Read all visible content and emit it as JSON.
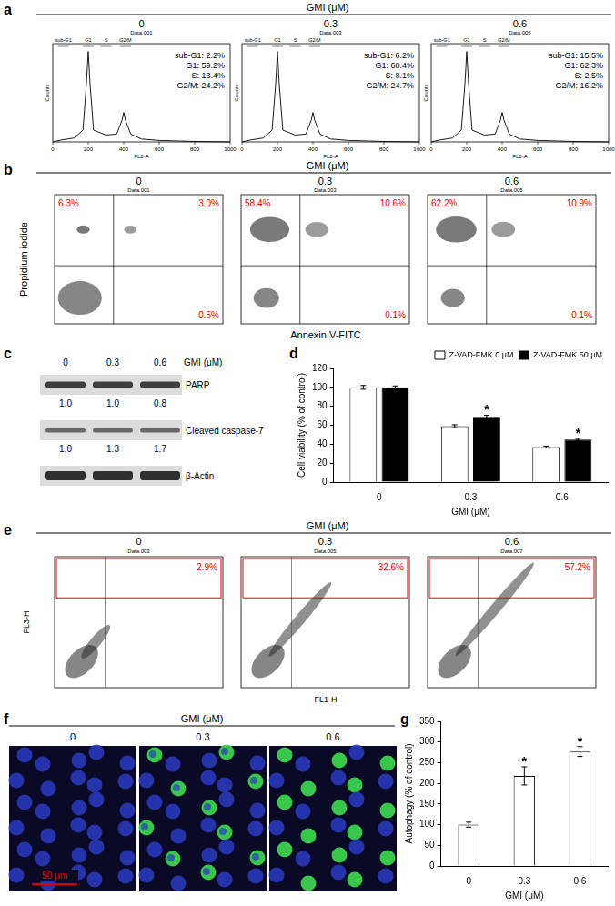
{
  "figure": {
    "header": "GMI (μM)",
    "doses": [
      "0",
      "0.3",
      "0.6"
    ]
  },
  "panels": {
    "a": {
      "panel_label": "a",
      "x_label": "FL2-A",
      "y_label": "Counts",
      "xticks": [
        0,
        200,
        400,
        600,
        800,
        1000
      ],
      "gate_labels": [
        "sub-G1",
        "G1",
        "S",
        "G2/M"
      ],
      "file_names": [
        "Data.001",
        "Data.003",
        "Data.005"
      ],
      "stats": [
        [
          "sub-G1: 2.2%",
          "G1: 59.2%",
          "S: 13.4%",
          "G2/M: 24.2%"
        ],
        [
          "sub-G1: 6.2%",
          "G1: 60.4%",
          "S: 8.1%",
          "G2/M: 24.7%"
        ],
        [
          "sub-G1: 15.5%",
          "G1: 62.3%",
          "S: 2.5%",
          "G2/M: 16.2%"
        ]
      ]
    },
    "b": {
      "panel_label": "b",
      "x_label": "Annexin V-FITC",
      "y_label": "Propidium iodide",
      "file_names": [
        "Data.001",
        "Data.003",
        "Data.005"
      ],
      "quadrants": [
        {
          "upper_left": {
            "value": 6.3,
            "label": "6.3%"
          },
          "upper_right": {
            "value": 3.0,
            "label": "3.0%"
          },
          "lower_right": {
            "value": 0.5,
            "label": "0.5%"
          }
        },
        {
          "upper_left": {
            "value": 58.4,
            "label": "58.4%"
          },
          "upper_right": {
            "value": 10.6,
            "label": "10.6%"
          },
          "lower_right": {
            "value": 0.1,
            "label": "0.1%"
          }
        },
        {
          "upper_left": {
            "value": 62.2,
            "label": "62.2%"
          },
          "upper_right": {
            "value": 10.9,
            "label": "10.9%"
          },
          "lower_right": {
            "value": 0.1,
            "label": "0.1%"
          }
        }
      ]
    },
    "c": {
      "panel_label": "c",
      "rows": [
        {
          "name": "PARP",
          "values": [
            "1.0",
            "1.0",
            "0.8"
          ]
        },
        {
          "name": "Cleaved caspase-7",
          "values": [
            "1.0",
            "1.3",
            "1.7"
          ]
        },
        {
          "name": "β-Actin"
        }
      ]
    },
    "e": {
      "panel_label": "e",
      "x_label": "FL1-H",
      "y_label": "FL3-H",
      "file_names": [
        "Data.003",
        "Data.005",
        "Data.007"
      ],
      "gate_percentages": [
        {
          "value": 2.9,
          "label": "2.9%"
        },
        {
          "value": 32.6,
          "label": "32.6%"
        },
        {
          "value": 57.2,
          "label": "57.2%"
        }
      ]
    },
    "f": {
      "panel_label": "f",
      "scale_bar": "50 μm"
    }
  },
  "chart_data": [
    {
      "panel_label": "d",
      "type": "bar",
      "categories": [
        "0",
        "0.3",
        "0.6"
      ],
      "x_label": "GMI (μM)",
      "y_label": "Cell viability (% of control)",
      "ylim": [
        0,
        120
      ],
      "yticks": [
        0,
        20,
        40,
        60,
        80,
        100,
        120
      ],
      "legend": "top-right",
      "series": [
        {
          "name": "Z-VAD-FMK 0 μM",
          "color": "#ffffff",
          "values": [
            100,
            59,
            37
          ],
          "errors": [
            2,
            1.5,
            1
          ]
        },
        {
          "name": "Z-VAD-FMK 50 μM",
          "color": "#000000",
          "values": [
            100,
            69,
            45
          ],
          "errors": [
            1.5,
            1.5,
            1
          ]
        }
      ],
      "annotations": [
        {
          "series": 1,
          "index": 1,
          "text": "*"
        },
        {
          "series": 1,
          "index": 2,
          "text": "*"
        }
      ]
    },
    {
      "panel_label": "g",
      "type": "bar",
      "categories": [
        "0",
        "0.3",
        "0.6"
      ],
      "x_label": "GMI (μM)",
      "y_label": "Autophagy (% of control)",
      "ylim": [
        0,
        350
      ],
      "yticks": [
        0,
        50,
        100,
        150,
        200,
        250,
        300,
        350
      ],
      "color": "#ffffff",
      "values": [
        100,
        218,
        277
      ],
      "errors": [
        6,
        22,
        12
      ],
      "annotations": [
        {
          "index": 1,
          "text": "*"
        },
        {
          "index": 2,
          "text": "*"
        }
      ]
    }
  ]
}
